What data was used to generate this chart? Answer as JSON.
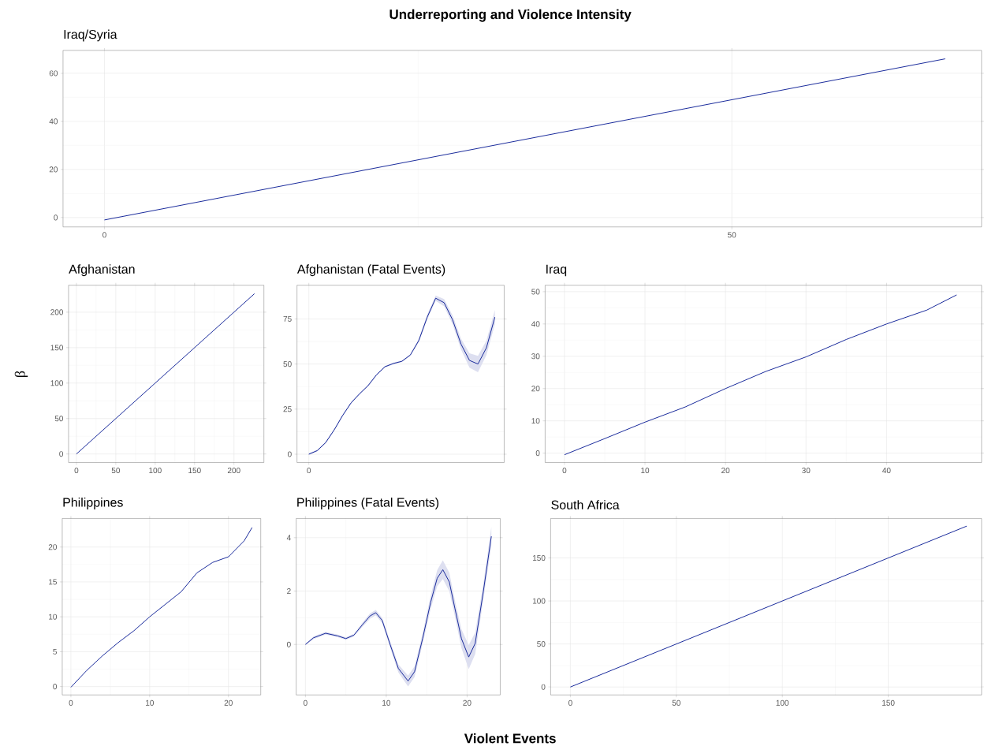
{
  "chart_data": [
    {
      "type": "other",
      "title": "Underreporting and Violence Intensity",
      "xlabel": "Violent Events",
      "ylabel": "β"
    },
    {
      "type": "line",
      "title": "Iraq/Syria",
      "x": [
        0,
        67
      ],
      "series": [
        {
          "color": "#1a2b9c",
          "values": [
            -1,
            66
          ]
        }
      ],
      "xlim": [
        -3.3,
        69.9
      ],
      "ylim": [
        -3.9,
        69.5
      ],
      "xticks": [
        0,
        50
      ],
      "yticks": [
        0,
        20,
        40,
        60
      ],
      "grid": true
    },
    {
      "type": "line",
      "title": "Afghanistan",
      "x": [
        0,
        226
      ],
      "series": [
        {
          "color": "#1a2b9c",
          "values": [
            0,
            226
          ]
        }
      ],
      "xlim": [
        -10,
        238
      ],
      "ylim": [
        -12,
        238
      ],
      "xticks": [
        0,
        50,
        100,
        150,
        200
      ],
      "yticks": [
        0,
        50,
        100,
        150,
        200
      ],
      "grid": true
    },
    {
      "type": "line",
      "title": "Afghanistan (Fatal Events)",
      "categories": [
        "0",
        null,
        null,
        null,
        null,
        null,
        null,
        null,
        null,
        null,
        null,
        null,
        null,
        null,
        null,
        null,
        null,
        null,
        null,
        null,
        null,
        null,
        null
      ],
      "series": [
        {
          "color": "#1a2b9c",
          "values": [
            0,
            2,
            6.5,
            13.5,
            21.5,
            28.5,
            33.5,
            38,
            44,
            48.5,
            50.3,
            51.5,
            55,
            63,
            76,
            86.5,
            84,
            74.5,
            61,
            52,
            50,
            59,
            76
          ],
          "lower": [
            -0.5,
            1.5,
            6,
            13,
            21,
            28,
            33,
            37.5,
            43.5,
            48,
            49.8,
            51,
            54.5,
            62,
            74.5,
            85,
            82,
            72,
            58,
            48,
            45.5,
            55,
            72
          ],
          "upper": [
            0.5,
            2.5,
            7,
            14,
            22,
            29,
            34,
            38.5,
            44.5,
            49,
            50.8,
            52,
            55.5,
            64,
            77.5,
            88,
            86,
            77,
            64,
            56,
            54.5,
            63,
            80
          ]
        }
      ],
      "ylim": [
        -4.6,
        93.7
      ],
      "yticks": [
        0,
        25,
        50,
        75
      ],
      "grid": true
    },
    {
      "type": "line",
      "title": "Iraq",
      "x": [
        0,
        5,
        10,
        15,
        20,
        25,
        30,
        35,
        40,
        45,
        48.7
      ],
      "series": [
        {
          "color": "#1a2b9c",
          "values": [
            -0.5,
            4.5,
            9.6,
            14.3,
            20,
            25.3,
            29.8,
            35.2,
            40,
            44.3,
            49
          ]
        }
      ],
      "xlim": [
        -2.4,
        51.8
      ],
      "ylim": [
        -2.9,
        52
      ],
      "xticks": [
        0,
        10,
        20,
        30,
        40
      ],
      "yticks": [
        0,
        10,
        20,
        30,
        40,
        50
      ],
      "grid": true
    },
    {
      "type": "line",
      "title": "Philippines",
      "x": [
        0,
        2,
        4,
        6,
        8,
        10,
        12,
        14,
        16,
        18,
        20,
        22,
        23
      ],
      "series": [
        {
          "color": "#1a2b9c",
          "values": [
            -0.1,
            2.3,
            4.4,
            6.3,
            8,
            10,
            11.8,
            13.6,
            16.3,
            17.8,
            18.6,
            20.9,
            22.8
          ]
        }
      ],
      "xlim": [
        -1.1,
        24.1
      ],
      "ylim": [
        -1.2,
        24.1
      ],
      "xticks": [
        0,
        10,
        20
      ],
      "yticks": [
        0,
        5,
        10,
        15,
        20
      ],
      "grid": true
    },
    {
      "type": "line",
      "title": "Philippines (Fatal Events)",
      "x": [
        0,
        1,
        2.5,
        4,
        5,
        6,
        7,
        8,
        8.7,
        9.5,
        10.5,
        11.5,
        12.7,
        13.5,
        14.5,
        15.5,
        16.3,
        17,
        17.8,
        18.5,
        19.3,
        20.2,
        21,
        22,
        23
      ],
      "series": [
        {
          "color": "#1a2b9c",
          "values": [
            0,
            0.25,
            0.42,
            0.32,
            0.22,
            0.35,
            0.72,
            1.07,
            1.19,
            0.9,
            -0.02,
            -0.9,
            -1.37,
            -1.02,
            0.22,
            1.59,
            2.48,
            2.8,
            2.34,
            1.34,
            0.22,
            -0.47,
            0.04,
            1.96,
            4.05
          ],
          "lower": [
            -0.03,
            0.2,
            0.37,
            0.27,
            0.17,
            0.3,
            0.64,
            0.97,
            1.09,
            0.8,
            -0.14,
            -1.05,
            -1.57,
            -1.22,
            0.02,
            1.34,
            2.18,
            2.45,
            1.99,
            1.04,
            -0.13,
            -0.92,
            -0.36,
            1.66,
            3.7
          ],
          "upper": [
            0.03,
            0.3,
            0.47,
            0.37,
            0.27,
            0.4,
            0.8,
            1.17,
            1.29,
            1.0,
            0.1,
            -0.75,
            -1.17,
            -0.82,
            0.42,
            1.84,
            2.78,
            3.15,
            2.69,
            1.64,
            0.57,
            -0.02,
            0.44,
            2.26,
            4.4
          ]
        }
      ],
      "xlim": [
        -1.14,
        24.1
      ],
      "ylim": [
        -1.89,
        4.72
      ],
      "xticks": [
        0,
        10,
        20
      ],
      "yticks": [
        0,
        2,
        4
      ],
      "grid": true
    },
    {
      "type": "line",
      "title": "South Africa",
      "x": [
        0,
        187
      ],
      "series": [
        {
          "color": "#1a2b9c",
          "values": [
            0,
            187
          ]
        }
      ],
      "xlim": [
        -9.3,
        194
      ],
      "ylim": [
        -9.2,
        195.9
      ],
      "xticks": [
        0,
        50,
        100,
        150
      ],
      "yticks": [
        0,
        50,
        100,
        150
      ],
      "grid": true
    }
  ]
}
